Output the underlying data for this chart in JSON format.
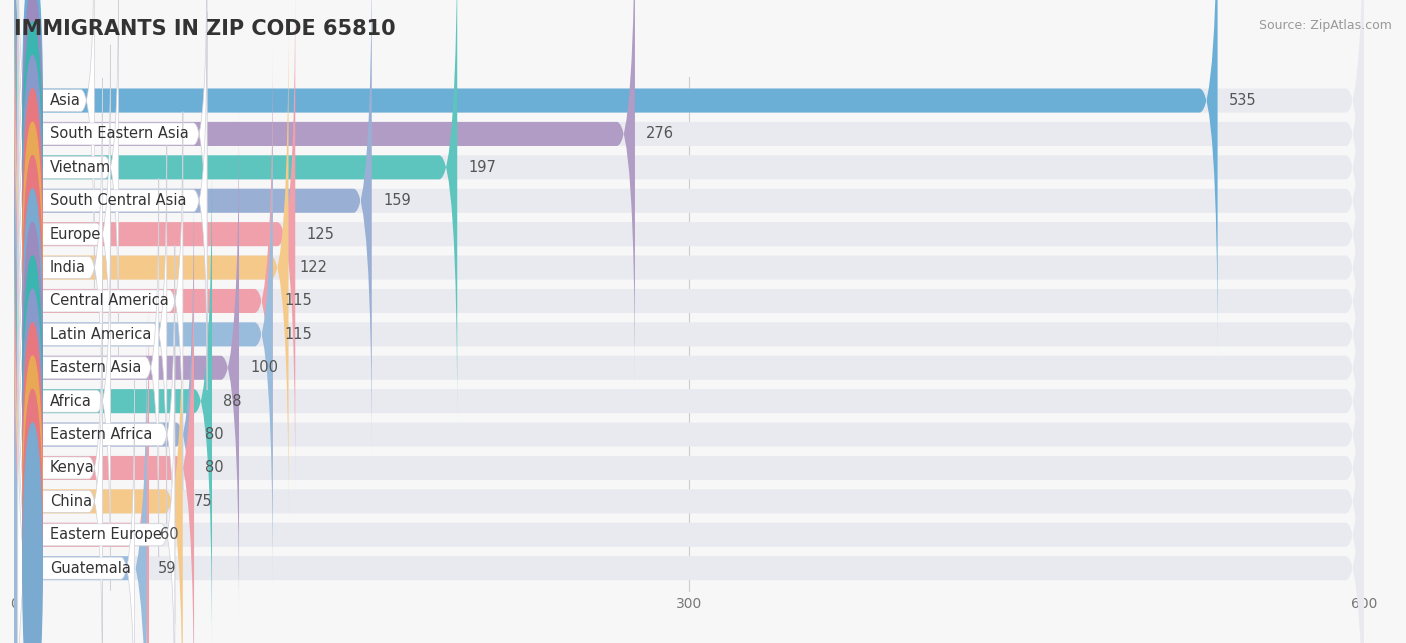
{
  "title": "IMMIGRANTS IN ZIP CODE 65810",
  "source": "Source: ZipAtlas.com",
  "categories": [
    "Asia",
    "South Eastern Asia",
    "Vietnam",
    "South Central Asia",
    "Europe",
    "India",
    "Central America",
    "Latin America",
    "Eastern Asia",
    "Africa",
    "Eastern Africa",
    "Kenya",
    "China",
    "Eastern Europe",
    "Guatemala"
  ],
  "values": [
    535,
    276,
    197,
    159,
    125,
    122,
    115,
    115,
    100,
    88,
    80,
    80,
    75,
    60,
    59
  ],
  "bar_colors": [
    "#6baed6",
    "#b09cc4",
    "#5ec4be",
    "#9aafd4",
    "#f0a0aa",
    "#f5c98a",
    "#f0a0aa",
    "#9abcdc",
    "#b09cc4",
    "#5ec4be",
    "#9aafd4",
    "#f0a0aa",
    "#f5c98a",
    "#f0a0aa",
    "#9abcdc"
  ],
  "circle_colors": [
    "#6baed6",
    "#9b8bbf",
    "#3ab5b0",
    "#8899cc",
    "#e87880",
    "#e8a855",
    "#e87880",
    "#7aaad0",
    "#9b8bbf",
    "#3ab5b0",
    "#8899cc",
    "#e87880",
    "#e8a855",
    "#e87880",
    "#7aaad0"
  ],
  "background_color": "#f7f7f8",
  "bar_bg_color": "#e8eaef",
  "xlim": [
    0,
    600
  ],
  "xticks": [
    0,
    300,
    600
  ],
  "title_fontsize": 15,
  "label_fontsize": 10.5,
  "value_fontsize": 10.5
}
